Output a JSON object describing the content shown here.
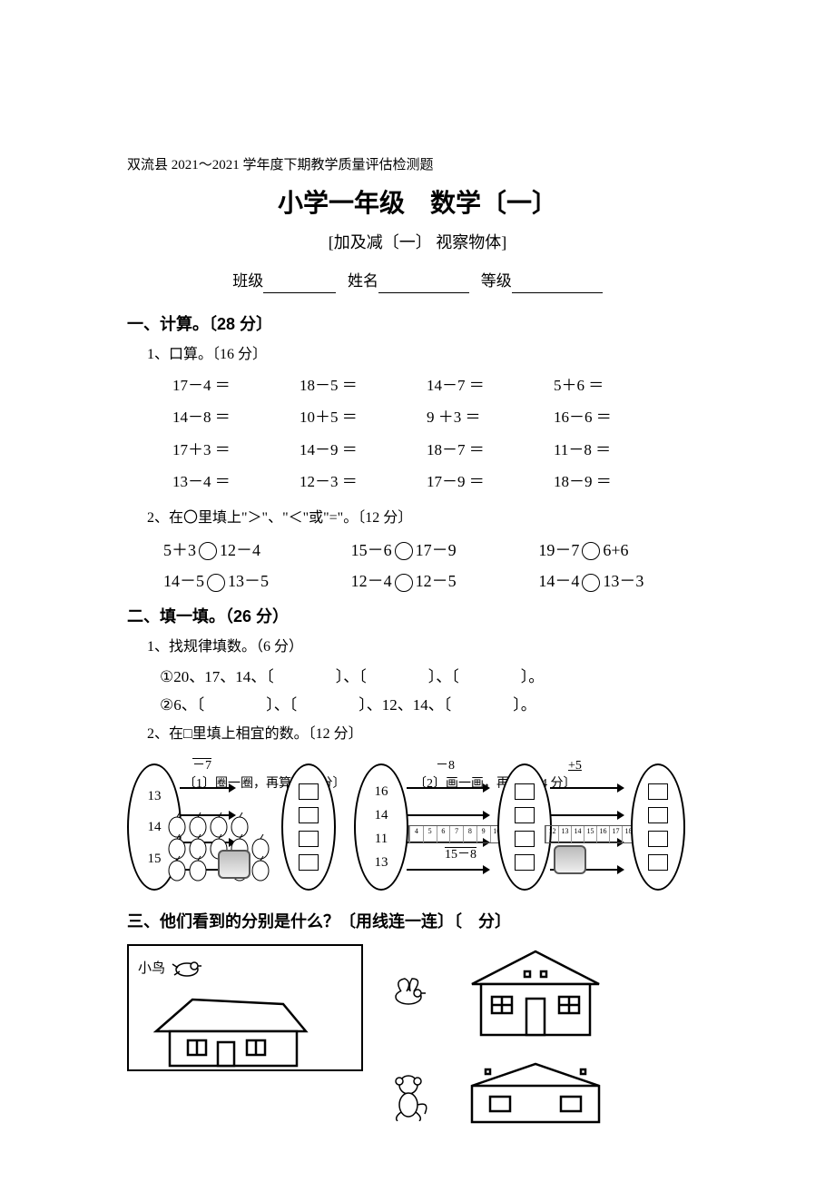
{
  "header": "双流县 2021～2021 学年度下期教学质量评估检测题",
  "title": "小学一年级　数学〔一〕",
  "subtitle": "[加及减〔一〕 视察物体]",
  "info": {
    "class_label": "班级",
    "name_label": "姓名",
    "grade_label": "等级"
  },
  "s1": {
    "head": "一、计算。〔28 分〕",
    "p1": {
      "label": "1、口算。〔16 分〕",
      "items": [
        "17－4 ＝",
        "18－5 ＝",
        "14－7 ＝",
        "5＋6 ＝",
        "14－8 ＝",
        "10＋5 ＝",
        "9 ＋3 ＝",
        "16－6 ＝",
        "17＋3 ＝",
        "14－9 ＝",
        "18－7 ＝",
        "11－8 ＝",
        "13－4 ＝",
        "12－3 ＝",
        "17－9 ＝",
        "18－9 ＝"
      ]
    },
    "p2": {
      "label": "2、在〇里填上\"＞\"、\"＜\"或\"=\"。〔12 分〕",
      "items": [
        [
          "5＋3",
          "12－4"
        ],
        [
          "15－6",
          "17－9"
        ],
        [
          "19－7",
          "6+6"
        ],
        [
          "14－5",
          "13－5"
        ],
        [
          "12－4",
          "12－5"
        ],
        [
          "14－4",
          "13－3"
        ]
      ]
    }
  },
  "s2": {
    "head": "二、填一填。（26 分）",
    "p1": {
      "label": "1、找规律填数。（6 分）",
      "line1": "①20、17、14、〔　　　　〕、〔　　　　〕、〔　　　　〕。",
      "line2": "②6、〔　　　　〕、〔　　　　〕、12、14、〔　　　　〕。"
    },
    "p2": {
      "label": "2、在□里填上相宜的数。〔12 分〕",
      "left_nums": [
        "13",
        "14",
        "15"
      ],
      "right_nums": [
        "16",
        "14",
        "11",
        "13"
      ],
      "op_left": "－7",
      "op_mid": "－8",
      "op_right": "+5",
      "sub1": "〔1〕圈一圈，再算。〔4 分〕",
      "sub2": "〔2〕画一画，再算。〔4 分〕",
      "bottom_expr": "15－8",
      "ruler_marks": [
        "4",
        "5",
        "6",
        "7",
        "8",
        "9",
        "10",
        "11",
        "12",
        "13",
        "14",
        "15",
        "16",
        "17",
        "18"
      ]
    }
  },
  "s3": {
    "head": "三、他们看到的分别是什么？〔用线连一连〕〔　分〕",
    "bird": "小鸟"
  },
  "colors": {
    "text": "#000000",
    "bg": "#ffffff",
    "gray_fill": "#bbbbbb",
    "house_stroke": "#000000"
  }
}
